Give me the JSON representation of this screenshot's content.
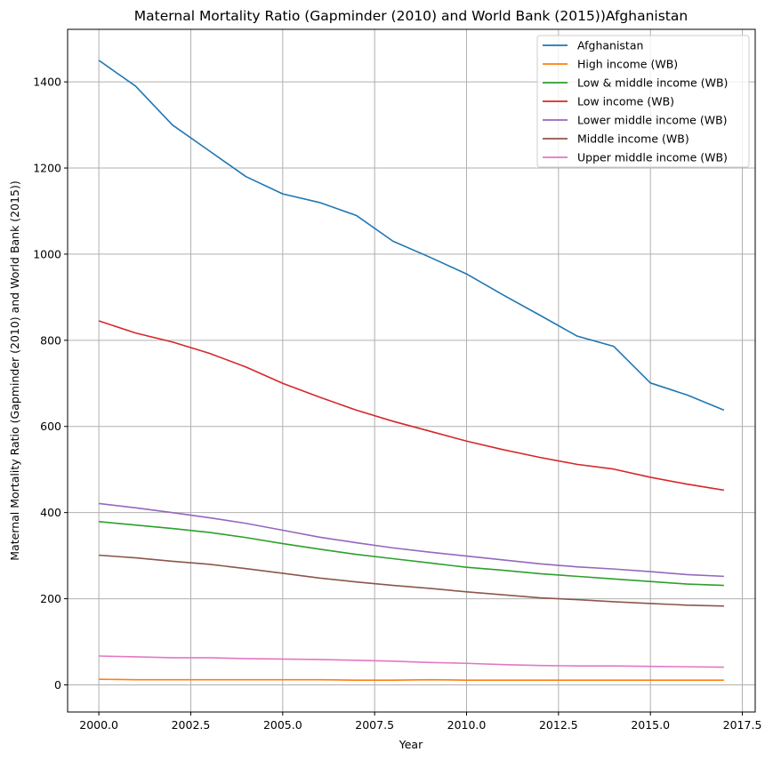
{
  "chart_data": {
    "type": "line",
    "title": "Maternal Mortality Ratio (Gapminder (2010) and World Bank (2015))Afghanistan",
    "xlabel": "Year",
    "ylabel": "Maternal Mortality Ratio (Gapminder (2010) and World Bank (2015))",
    "xlim": [
      1999.15,
      2017.85
    ],
    "ylim": [
      -63,
      1522
    ],
    "x_ticks": [
      2000.0,
      2002.5,
      2005.0,
      2007.5,
      2010.0,
      2012.5,
      2015.0,
      2017.5
    ],
    "x_tick_labels": [
      "2000.0",
      "2002.5",
      "2005.0",
      "2007.5",
      "2010.0",
      "2012.5",
      "2015.0",
      "2017.5"
    ],
    "y_ticks": [
      0,
      200,
      400,
      600,
      800,
      1000,
      1200,
      1400
    ],
    "y_tick_labels": [
      "0",
      "200",
      "400",
      "600",
      "800",
      "1000",
      "1200",
      "1400"
    ],
    "grid": true,
    "legend_position": "top-right",
    "x": [
      2000,
      2001,
      2002,
      2003,
      2004,
      2005,
      2006,
      2007,
      2008,
      2009,
      2010,
      2011,
      2012,
      2013,
      2014,
      2015,
      2016,
      2017
    ],
    "series": [
      {
        "name": "Afghanistan",
        "color": "#1f77b4",
        "values": [
          1450,
          1390,
          1300,
          1240,
          1180,
          1140,
          1120,
          1090,
          1030,
          993,
          954,
          905,
          858,
          810,
          786,
          701,
          673,
          638
        ]
      },
      {
        "name": "High income (WB)",
        "color": "#ff7f0e",
        "values": [
          13,
          12,
          12,
          12,
          12,
          12,
          12,
          11,
          11,
          12,
          11,
          11,
          11,
          11,
          11,
          11,
          11,
          11
        ]
      },
      {
        "name": "Low & middle income (WB)",
        "color": "#2ca02c",
        "values": [
          379,
          371,
          363,
          354,
          342,
          328,
          315,
          303,
          293,
          283,
          273,
          266,
          258,
          252,
          246,
          240,
          234,
          231
        ]
      },
      {
        "name": "Low income (WB)",
        "color": "#d62728",
        "values": [
          845,
          817,
          796,
          770,
          738,
          700,
          668,
          638,
          612,
          589,
          566,
          546,
          528,
          512,
          501,
          482,
          466,
          452
        ]
      },
      {
        "name": "Lower middle income (WB)",
        "color": "#9467bd",
        "values": [
          421,
          411,
          400,
          388,
          375,
          359,
          343,
          330,
          318,
          308,
          299,
          290,
          281,
          274,
          269,
          263,
          256,
          252
        ]
      },
      {
        "name": "Middle income (WB)",
        "color": "#8c564b",
        "values": [
          301,
          295,
          287,
          280,
          270,
          259,
          248,
          239,
          231,
          224,
          216,
          209,
          202,
          198,
          193,
          189,
          185,
          183
        ]
      },
      {
        "name": "Upper middle income (WB)",
        "color": "#e377c2",
        "values": [
          67,
          65,
          63,
          63,
          61,
          60,
          59,
          57,
          55,
          52,
          50,
          47,
          45,
          44,
          44,
          43,
          42,
          41
        ]
      }
    ]
  }
}
